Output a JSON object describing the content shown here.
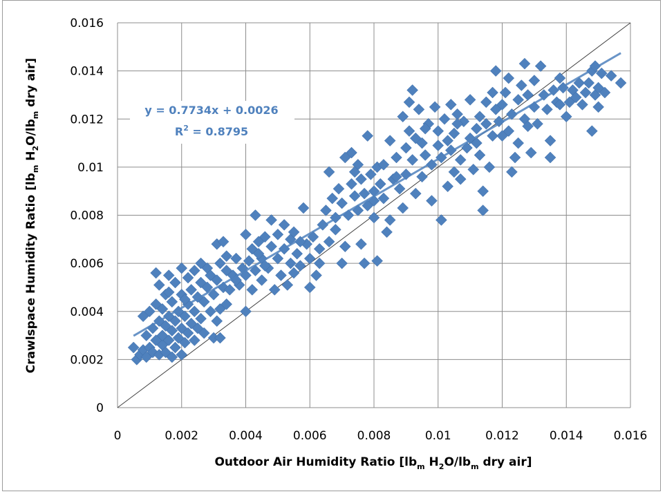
{
  "chart_data": {
    "type": "scatter",
    "x_label_parts": [
      "Outdoor Air Humidity Ratio [lb",
      "m",
      " H",
      "2",
      "O/lb",
      "m",
      " dry air]"
    ],
    "y_label_parts": [
      "Crawlspace  Humidity Ratio [lb",
      "m",
      " H",
      "2",
      "O/lb",
      "m",
      " dry air]"
    ],
    "xlim": [
      0,
      0.016
    ],
    "ylim": [
      0,
      0.016
    ],
    "x_ticks": [
      "0",
      "0.002",
      "0.004",
      "0.006",
      "0.008",
      "0.01",
      "0.012",
      "0.014",
      "0.016"
    ],
    "y_ticks": [
      "0",
      "0.002",
      "0.004",
      "0.006",
      "0.008",
      "0.01",
      "0.012",
      "0.014",
      "0.016"
    ],
    "grid": true,
    "series_color": "#4f81bd",
    "marker": "diamond",
    "trendline": {
      "slope": 0.7734,
      "intercept": 0.0026,
      "x_range": [
        0.0005,
        0.0157
      ]
    },
    "identity_line": true,
    "equation_text": "y = 0.7734x + 0.0026",
    "r2_text_parts": [
      "R",
      "2",
      " = 0.8795"
    ],
    "points": [
      [
        0.0005,
        0.0025
      ],
      [
        0.0006,
        0.002
      ],
      [
        0.0007,
        0.0022
      ],
      [
        0.0008,
        0.0024
      ],
      [
        0.0008,
        0.0038
      ],
      [
        0.0009,
        0.003
      ],
      [
        0.0009,
        0.0021
      ],
      [
        0.001,
        0.0025
      ],
      [
        0.001,
        0.004
      ],
      [
        0.0011,
        0.0023
      ],
      [
        0.0011,
        0.0033
      ],
      [
        0.0012,
        0.0028
      ],
      [
        0.0012,
        0.0043
      ],
      [
        0.0012,
        0.0056
      ],
      [
        0.0013,
        0.0022
      ],
      [
        0.0013,
        0.0036
      ],
      [
        0.0013,
        0.0051
      ],
      [
        0.0014,
        0.0026
      ],
      [
        0.0014,
        0.003
      ],
      [
        0.0014,
        0.0041
      ],
      [
        0.0015,
        0.0023
      ],
      [
        0.0015,
        0.0034
      ],
      [
        0.0015,
        0.0047
      ],
      [
        0.0016,
        0.0028
      ],
      [
        0.0016,
        0.0038
      ],
      [
        0.0016,
        0.0055
      ],
      [
        0.0017,
        0.0021
      ],
      [
        0.0017,
        0.0032
      ],
      [
        0.0017,
        0.0044
      ],
      [
        0.0018,
        0.0025
      ],
      [
        0.0018,
        0.0036
      ],
      [
        0.0018,
        0.0052
      ],
      [
        0.0019,
        0.0029
      ],
      [
        0.0019,
        0.004
      ],
      [
        0.002,
        0.0022
      ],
      [
        0.002,
        0.0033
      ],
      [
        0.002,
        0.0047
      ],
      [
        0.002,
        0.0058
      ],
      [
        0.0021,
        0.0027
      ],
      [
        0.0021,
        0.0038
      ],
      [
        0.0022,
        0.0031
      ],
      [
        0.0022,
        0.0043
      ],
      [
        0.0022,
        0.0054
      ],
      [
        0.0023,
        0.0035
      ],
      [
        0.0023,
        0.0049
      ],
      [
        0.0024,
        0.0028
      ],
      [
        0.0024,
        0.004
      ],
      [
        0.0024,
        0.0057
      ],
      [
        0.0025,
        0.0033
      ],
      [
        0.0025,
        0.0046
      ],
      [
        0.0026,
        0.0037
      ],
      [
        0.0026,
        0.0052
      ],
      [
        0.0026,
        0.006
      ],
      [
        0.0027,
        0.0031
      ],
      [
        0.0027,
        0.0044
      ],
      [
        0.0028,
        0.005
      ],
      [
        0.0028,
        0.0058
      ],
      [
        0.0029,
        0.004
      ],
      [
        0.0029,
        0.0055
      ],
      [
        0.003,
        0.0029
      ],
      [
        0.003,
        0.0047
      ],
      [
        0.0031,
        0.0036
      ],
      [
        0.0031,
        0.0053
      ],
      [
        0.0031,
        0.0068
      ],
      [
        0.0032,
        0.0029
      ],
      [
        0.0032,
        0.0041
      ],
      [
        0.0032,
        0.006
      ],
      [
        0.0033,
        0.005
      ],
      [
        0.0033,
        0.0069
      ],
      [
        0.0034,
        0.0043
      ],
      [
        0.0034,
        0.0057
      ],
      [
        0.0035,
        0.0049
      ],
      [
        0.0036,
        0.0055
      ],
      [
        0.0037,
        0.0062
      ],
      [
        0.0038,
        0.0051
      ],
      [
        0.0039,
        0.0058
      ],
      [
        0.004,
        0.004
      ],
      [
        0.004,
        0.0055
      ],
      [
        0.004,
        0.0072
      ],
      [
        0.0041,
        0.0061
      ],
      [
        0.0042,
        0.0049
      ],
      [
        0.0042,
        0.0066
      ],
      [
        0.0043,
        0.0057
      ],
      [
        0.0043,
        0.008
      ],
      [
        0.0044,
        0.0069
      ],
      [
        0.0045,
        0.0053
      ],
      [
        0.0045,
        0.0062
      ],
      [
        0.0046,
        0.0071
      ],
      [
        0.0047,
        0.0058
      ],
      [
        0.0048,
        0.0067
      ],
      [
        0.0048,
        0.0078
      ],
      [
        0.0049,
        0.0049
      ],
      [
        0.005,
        0.0062
      ],
      [
        0.005,
        0.0072
      ],
      [
        0.0051,
        0.0055
      ],
      [
        0.0052,
        0.0066
      ],
      [
        0.0052,
        0.0076
      ],
      [
        0.0053,
        0.0051
      ],
      [
        0.0054,
        0.006
      ],
      [
        0.0054,
        0.007
      ],
      [
        0.0055,
        0.0056
      ],
      [
        0.0055,
        0.0073
      ],
      [
        0.0056,
        0.0064
      ],
      [
        0.0057,
        0.0059
      ],
      [
        0.0058,
        0.0083
      ],
      [
        0.0059,
        0.0068
      ],
      [
        0.006,
        0.005
      ],
      [
        0.006,
        0.0062
      ],
      [
        0.0061,
        0.0071
      ],
      [
        0.0062,
        0.0055
      ],
      [
        0.0063,
        0.0066
      ],
      [
        0.0064,
        0.0076
      ],
      [
        0.0065,
        0.0082
      ],
      [
        0.0066,
        0.0069
      ],
      [
        0.0066,
        0.0098
      ],
      [
        0.0067,
        0.0087
      ],
      [
        0.0068,
        0.0079
      ],
      [
        0.0069,
        0.0091
      ],
      [
        0.007,
        0.006
      ],
      [
        0.007,
        0.0085
      ],
      [
        0.0071,
        0.0067
      ],
      [
        0.0071,
        0.0104
      ],
      [
        0.0072,
        0.008
      ],
      [
        0.0073,
        0.0093
      ],
      [
        0.0073,
        0.0106
      ],
      [
        0.0074,
        0.0088
      ],
      [
        0.0075,
        0.0082
      ],
      [
        0.0075,
        0.0101
      ],
      [
        0.0076,
        0.0095
      ],
      [
        0.0076,
        0.0068
      ],
      [
        0.0077,
        0.006
      ],
      [
        0.0077,
        0.0089
      ],
      [
        0.0078,
        0.0113
      ],
      [
        0.0078,
        0.0084
      ],
      [
        0.0079,
        0.0097
      ],
      [
        0.008,
        0.009
      ],
      [
        0.008,
        0.0079
      ],
      [
        0.008,
        0.0086
      ],
      [
        0.0081,
        0.01
      ],
      [
        0.0081,
        0.0061
      ],
      [
        0.0082,
        0.0093
      ],
      [
        0.0083,
        0.0087
      ],
      [
        0.0083,
        0.0101
      ],
      [
        0.0084,
        0.0073
      ],
      [
        0.0085,
        0.0078
      ],
      [
        0.0085,
        0.0111
      ],
      [
        0.0086,
        0.0095
      ],
      [
        0.0087,
        0.0104
      ],
      [
        0.0088,
        0.0091
      ],
      [
        0.0089,
        0.0121
      ],
      [
        0.0089,
        0.0083
      ],
      [
        0.009,
        0.0097
      ],
      [
        0.009,
        0.0108
      ],
      [
        0.0091,
        0.0115
      ],
      [
        0.0091,
        0.0127
      ],
      [
        0.0092,
        0.0132
      ],
      [
        0.0092,
        0.0103
      ],
      [
        0.0093,
        0.0089
      ],
      [
        0.0093,
        0.0112
      ],
      [
        0.0094,
        0.0124
      ],
      [
        0.0095,
        0.0096
      ],
      [
        0.0095,
        0.011
      ],
      [
        0.0096,
        0.0105
      ],
      [
        0.0097,
        0.0118
      ],
      [
        0.0098,
        0.0086
      ],
      [
        0.0098,
        0.0101
      ],
      [
        0.0099,
        0.0125
      ],
      [
        0.01,
        0.0109
      ],
      [
        0.01,
        0.0115
      ],
      [
        0.0101,
        0.0078
      ],
      [
        0.0101,
        0.0104
      ],
      [
        0.0102,
        0.012
      ],
      [
        0.0103,
        0.0111
      ],
      [
        0.0103,
        0.0092
      ],
      [
        0.0104,
        0.0107
      ],
      [
        0.0104,
        0.0126
      ],
      [
        0.0105,
        0.0098
      ],
      [
        0.0105,
        0.0114
      ],
      [
        0.0106,
        0.0122
      ],
      [
        0.0107,
        0.0103
      ],
      [
        0.0107,
        0.0095
      ],
      [
        0.0108,
        0.0119
      ],
      [
        0.0109,
        0.0108
      ],
      [
        0.011,
        0.0128
      ],
      [
        0.011,
        0.0112
      ],
      [
        0.0111,
        0.0099
      ],
      [
        0.0112,
        0.0116
      ],
      [
        0.0113,
        0.0121
      ],
      [
        0.0113,
        0.0105
      ],
      [
        0.0114,
        0.0082
      ],
      [
        0.0114,
        0.009
      ],
      [
        0.0115,
        0.0118
      ],
      [
        0.0115,
        0.0127
      ],
      [
        0.0116,
        0.01
      ],
      [
        0.0117,
        0.0113
      ],
      [
        0.0117,
        0.0131
      ],
      [
        0.0118,
        0.0124
      ],
      [
        0.0118,
        0.014
      ],
      [
        0.0119,
        0.0119
      ],
      [
        0.012,
        0.0126
      ],
      [
        0.0121,
        0.0131
      ],
      [
        0.0122,
        0.0115
      ],
      [
        0.0122,
        0.0137
      ],
      [
        0.0123,
        0.0098
      ],
      [
        0.0123,
        0.0122
      ],
      [
        0.0124,
        0.0104
      ],
      [
        0.0125,
        0.0128
      ],
      [
        0.0125,
        0.011
      ],
      [
        0.0126,
        0.0134
      ],
      [
        0.0127,
        0.0143
      ],
      [
        0.0127,
        0.012
      ],
      [
        0.0128,
        0.0117
      ],
      [
        0.0128,
        0.013
      ],
      [
        0.0129,
        0.0106
      ],
      [
        0.013,
        0.0125
      ],
      [
        0.013,
        0.0136
      ],
      [
        0.0131,
        0.0118
      ],
      [
        0.0132,
        0.0142
      ],
      [
        0.0133,
        0.013
      ],
      [
        0.0134,
        0.0124
      ],
      [
        0.0135,
        0.0111
      ],
      [
        0.0135,
        0.0104
      ],
      [
        0.0136,
        0.0132
      ],
      [
        0.0137,
        0.0127
      ],
      [
        0.0138,
        0.0137
      ],
      [
        0.0138,
        0.0126
      ],
      [
        0.0139,
        0.0133
      ],
      [
        0.014,
        0.0121
      ],
      [
        0.0141,
        0.0127
      ],
      [
        0.0142,
        0.0132
      ],
      [
        0.0143,
        0.0129
      ],
      [
        0.0144,
        0.0135
      ],
      [
        0.0145,
        0.0126
      ],
      [
        0.0146,
        0.0131
      ],
      [
        0.0147,
        0.0135
      ],
      [
        0.0148,
        0.0115
      ],
      [
        0.0148,
        0.014
      ],
      [
        0.0149,
        0.0142
      ],
      [
        0.0149,
        0.013
      ],
      [
        0.015,
        0.0133
      ],
      [
        0.015,
        0.0125
      ],
      [
        0.0151,
        0.0139
      ],
      [
        0.0152,
        0.0131
      ],
      [
        0.0154,
        0.0138
      ],
      [
        0.0157,
        0.0135
      ],
      [
        0.0016,
        0.0048
      ],
      [
        0.0021,
        0.0045
      ],
      [
        0.0034,
        0.0063
      ],
      [
        0.0037,
        0.0053
      ],
      [
        0.0044,
        0.0064
      ],
      [
        0.0046,
        0.0059
      ],
      [
        0.0057,
        0.0069
      ],
      [
        0.0063,
        0.006
      ],
      [
        0.0068,
        0.0074
      ],
      [
        0.0074,
        0.0098
      ],
      [
        0.0087,
        0.0096
      ],
      [
        0.0096,
        0.0116
      ],
      [
        0.0106,
        0.0118
      ],
      [
        0.0112,
        0.011
      ],
      [
        0.012,
        0.0113
      ]
    ]
  }
}
